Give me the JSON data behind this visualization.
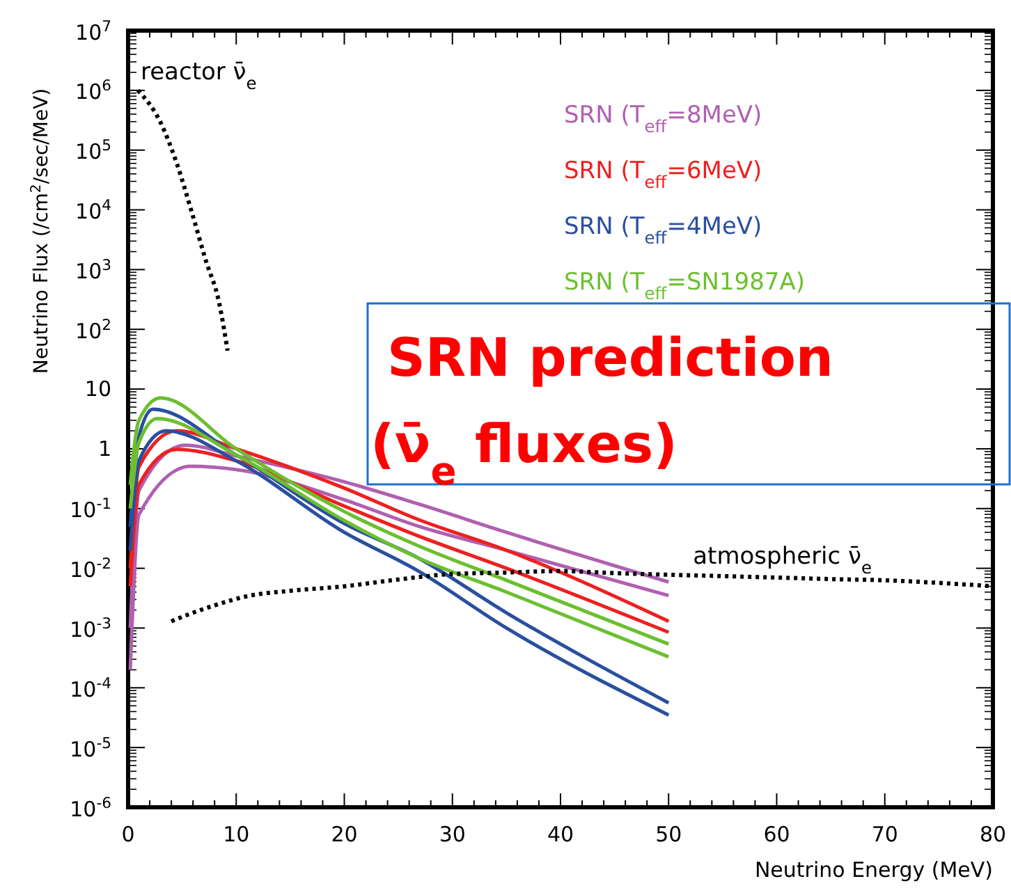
{
  "chart_data": {
    "type": "line",
    "xlabel": "Neutrino Energy (MeV)",
    "ylabel": "Neutrino Flux (/cm$^{2}$/sec/MeV)",
    "log": "y",
    "grid": false,
    "legend": "top right",
    "xlim": [
      0,
      80
    ],
    "xticks": [
      0,
      10,
      20,
      30,
      40,
      50,
      60,
      70,
      80
    ],
    "ylim": [
      1e-06,
      10000000
    ],
    "yticks": [
      {
        "value": 1e-06,
        "label": "10$^{-6}$"
      },
      {
        "value": 1e-05,
        "label": "10$^{-5}$"
      },
      {
        "value": 0.0001,
        "label": "10$^{-4}$"
      },
      {
        "value": 0.001,
        "label": "10$^{-3}$"
      },
      {
        "value": 0.01,
        "label": "10$^{-2}$"
      },
      {
        "value": 0.1,
        "label": "10$^{-1}$"
      },
      1,
      10,
      {
        "value": 100,
        "label": "10$^{2}$"
      },
      {
        "value": 1000,
        "label": "10$^{3}$"
      },
      {
        "value": 10000,
        "label": "10$^{4}$"
      },
      {
        "value": 100000,
        "label": "10$^{5}$"
      },
      {
        "value": 1000000,
        "label": "10$^{6}$"
      },
      {
        "value": 10000000,
        "label": "10$^{7}$"
      }
    ],
    "annotations": [
      "SRN prediction (ν̄$_{e}$ fluxes)",
      {
        "text": "reactor ν̄$_{e}$",
        "x": 0.9,
        "y": 1000000
      },
      {
        "text": "atmospheric ν̄$_{e}$",
        "x": 52,
        "y": 0.0078
      }
    ],
    "series": [
      {
        "name": "SRN (T$_{eff}$=8MeV)",
        "color": "#b060b0",
        "line_style": "solid",
        "x": [
          0.2,
          1,
          5.3,
          10,
          20,
          26.8,
          35,
          50
        ],
        "values": [
          0.001,
          0.2,
          1.15,
          0.76,
          0.28,
          0.12,
          0.04,
          0.0059
        ]
      },
      {
        "color": "#b060b0",
        "line_style": "solid",
        "x": [
          0.2,
          1,
          5.8,
          10,
          20,
          26.8,
          35,
          50
        ],
        "values": [
          0.0002,
          0.079,
          0.51,
          0.45,
          0.14,
          0.051,
          0.02,
          0.0035
        ]
      },
      {
        "name": "SRN (T$_{eff}$=6MeV)",
        "color": "#ee2020",
        "line_style": "solid",
        "x": [
          0.2,
          1,
          4.5,
          10,
          20,
          26.8,
          35,
          50
        ],
        "values": [
          0.01,
          0.5,
          2.0,
          1.0,
          0.22,
          0.066,
          0.02,
          0.0013
        ]
      },
      {
        "color": "#ee2020",
        "line_style": "solid",
        "x": [
          0.2,
          1,
          4.5,
          10,
          20,
          26.8,
          35,
          50
        ],
        "values": [
          0.005,
          0.25,
          0.98,
          0.63,
          0.11,
          0.035,
          0.01,
          0.00085
        ]
      },
      {
        "name": "SRN (T$_{eff}$=4MeV)",
        "color": "#2a4fa0",
        "line_style": "solid",
        "x": [
          0.2,
          1,
          2.3,
          10,
          20,
          26.8,
          35,
          50
        ],
        "values": [
          0.05,
          1.6,
          4.6,
          0.79,
          0.056,
          0.015,
          0.0018,
          5.6e-05
        ]
      },
      {
        "color": "#2a4fa0",
        "line_style": "solid",
        "x": [
          0.2,
          1,
          3.5,
          10,
          20,
          26.8,
          35,
          50
        ],
        "values": [
          0.02,
          0.63,
          2.0,
          0.63,
          0.04,
          0.0091,
          0.001,
          3.5e-05
        ]
      },
      {
        "name": "SRN (T$_{eff}$=SN1987A)",
        "color": "#6cbf30",
        "line_style": "solid",
        "x": [
          0.2,
          1,
          3,
          10,
          20,
          26.8,
          35,
          50
        ],
        "values": [
          0.25,
          3.0,
          7.1,
          1.0,
          0.089,
          0.024,
          0.0063,
          0.00054
        ]
      },
      {
        "color": "#6cbf30",
        "line_style": "solid",
        "x": [
          0.2,
          1,
          2.7,
          10,
          20,
          26.8,
          35,
          50
        ],
        "values": [
          0.1,
          1.26,
          3.2,
          0.79,
          0.063,
          0.015,
          0.004,
          0.00033
        ]
      },
      {
        "color": "#000000",
        "line_style": "dotted",
        "x": [
          0.9,
          3.0,
          4.5,
          5.9,
          7.2,
          8.4,
          9.2
        ],
        "values": [
          1000000,
          290000,
          60000,
          9000,
          1400,
          290,
          44
        ]
      },
      {
        "color": "#000000",
        "line_style": "dotted",
        "x": [
          4,
          6,
          8,
          11.3,
          15,
          20,
          25,
          29.8,
          35,
          40,
          45,
          50,
          55,
          60,
          65,
          70,
          75,
          80
        ],
        "values": [
          0.0013,
          0.0018,
          0.0024,
          0.0035,
          0.0042,
          0.005,
          0.0065,
          0.008,
          0.0085,
          0.009,
          0.0083,
          0.0078,
          0.0074,
          0.007,
          0.0066,
          0.0063,
          0.0057,
          0.005
        ]
      }
    ]
  }
}
